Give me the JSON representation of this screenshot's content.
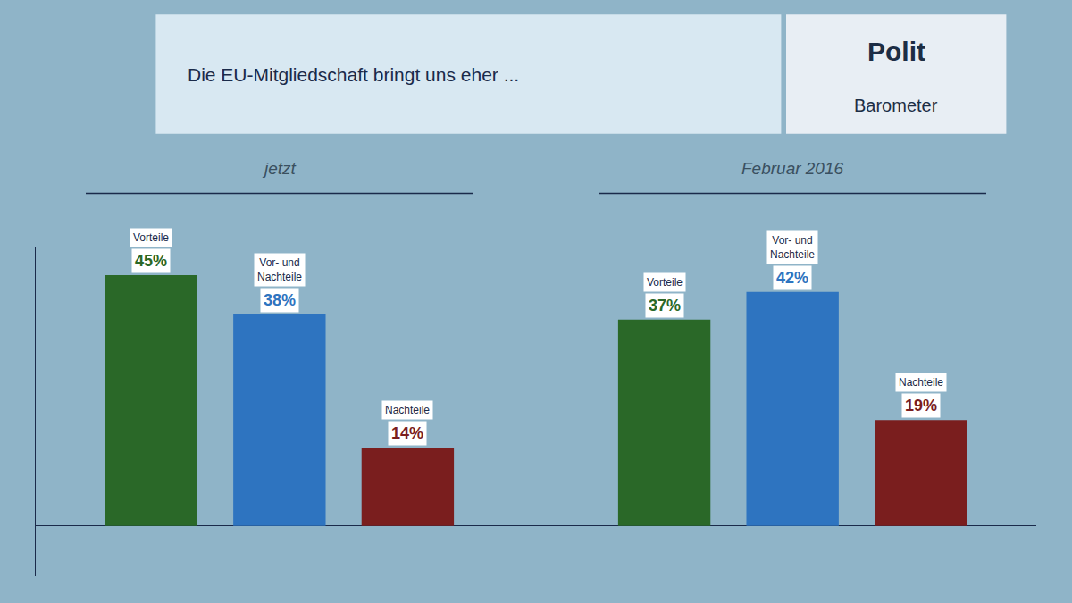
{
  "chart_data": {
    "type": "bar",
    "title": "Die EU-Mitgliedschaft bringt uns eher ...",
    "categories": [
      "Vorteile",
      "Vor- und\nNachteile",
      "Nachteile"
    ],
    "series": [
      {
        "name": "jetzt",
        "values": [
          45,
          38,
          14
        ],
        "value_labels": [
          "45%",
          "38%",
          "14%"
        ],
        "colors": [
          "#2a6828",
          "#2e74c0",
          "#7a1e1e"
        ]
      },
      {
        "name": "Februar 2016",
        "values": [
          37,
          42,
          19
        ],
        "value_labels": [
          "37%",
          "42%",
          "19%"
        ],
        "colors": [
          "#2a6828",
          "#2e74c0",
          "#7a1e1e"
        ]
      }
    ],
    "ylim": [
      -9,
      50
    ],
    "grid": false,
    "data_labels": true,
    "tick_labels": false,
    "annotations": [
      "Polit",
      "Barometer"
    ]
  }
}
